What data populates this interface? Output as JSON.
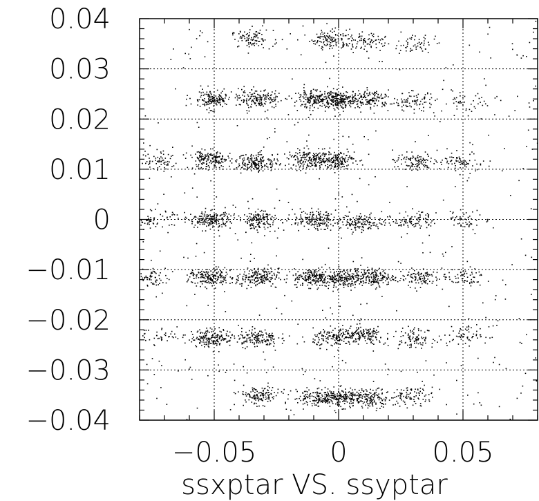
{
  "chart_data": {
    "type": "scatter",
    "title": "ssxptar VS. ssyptar",
    "xlabel": "ssxptar VS. ssyptar",
    "ylabel": "",
    "xlim": [
      -0.08,
      0.08
    ],
    "ylim": [
      -0.04,
      0.04
    ],
    "x_tick_labels": [
      "−0.05",
      "0",
      "0.05"
    ],
    "x_tick_values": [
      -0.05,
      0,
      0.05
    ],
    "y_tick_labels": [
      "0.04",
      "0.03",
      "0.02",
      "0.01",
      "0",
      "−0.01",
      "−0.02",
      "−0.03",
      "−0.04"
    ],
    "y_tick_values": [
      0.04,
      0.03,
      0.02,
      0.01,
      0,
      -0.01,
      -0.02,
      -0.03,
      -0.04
    ],
    "grid": true,
    "grid_style": "dotted",
    "marker_color": "#000000",
    "clusters": [
      {
        "x": -0.035,
        "y": 0.036,
        "n": 90
      },
      {
        "x": -0.003,
        "y": 0.036,
        "n": 110
      },
      {
        "x": 0.01,
        "y": 0.0355,
        "n": 80
      },
      {
        "x": 0.03,
        "y": 0.035,
        "n": 55
      },
      {
        "x": -0.051,
        "y": 0.024,
        "n": 150
      },
      {
        "x": -0.032,
        "y": 0.024,
        "n": 160
      },
      {
        "x": -0.01,
        "y": 0.024,
        "n": 160
      },
      {
        "x": 0.0,
        "y": 0.024,
        "n": 200
      },
      {
        "x": 0.012,
        "y": 0.024,
        "n": 140
      },
      {
        "x": 0.03,
        "y": 0.0235,
        "n": 80
      },
      {
        "x": 0.05,
        "y": 0.0235,
        "n": 40
      },
      {
        "x": -0.072,
        "y": 0.0115,
        "n": 60
      },
      {
        "x": -0.052,
        "y": 0.012,
        "n": 170
      },
      {
        "x": -0.033,
        "y": 0.0115,
        "n": 170
      },
      {
        "x": -0.012,
        "y": 0.012,
        "n": 160
      },
      {
        "x": -0.002,
        "y": 0.012,
        "n": 170
      },
      {
        "x": 0.03,
        "y": 0.0115,
        "n": 100
      },
      {
        "x": 0.05,
        "y": 0.0115,
        "n": 70
      },
      {
        "x": -0.075,
        "y": 0.0,
        "n": 60
      },
      {
        "x": -0.052,
        "y": 0.0,
        "n": 180
      },
      {
        "x": -0.032,
        "y": 0.0,
        "n": 150
      },
      {
        "x": -0.01,
        "y": 0.0,
        "n": 150
      },
      {
        "x": 0.009,
        "y": -0.0005,
        "n": 130
      },
      {
        "x": 0.03,
        "y": 0.0,
        "n": 90
      },
      {
        "x": 0.052,
        "y": 0.0,
        "n": 50
      },
      {
        "x": -0.075,
        "y": -0.0115,
        "n": 60
      },
      {
        "x": -0.052,
        "y": -0.0115,
        "n": 170
      },
      {
        "x": -0.033,
        "y": -0.0115,
        "n": 180
      },
      {
        "x": -0.01,
        "y": -0.0115,
        "n": 190
      },
      {
        "x": 0.002,
        "y": -0.0115,
        "n": 190
      },
      {
        "x": 0.014,
        "y": -0.0115,
        "n": 150
      },
      {
        "x": 0.032,
        "y": -0.0115,
        "n": 100
      },
      {
        "x": 0.05,
        "y": -0.0115,
        "n": 60
      },
      {
        "x": -0.072,
        "y": -0.023,
        "n": 40
      },
      {
        "x": -0.051,
        "y": -0.0235,
        "n": 170
      },
      {
        "x": -0.033,
        "y": -0.0235,
        "n": 140
      },
      {
        "x": -0.002,
        "y": -0.0235,
        "n": 140
      },
      {
        "x": 0.01,
        "y": -0.023,
        "n": 140
      },
      {
        "x": 0.03,
        "y": -0.0235,
        "n": 90
      },
      {
        "x": 0.052,
        "y": -0.023,
        "n": 60
      },
      {
        "x": -0.032,
        "y": -0.035,
        "n": 130
      },
      {
        "x": -0.01,
        "y": -0.0355,
        "n": 110
      },
      {
        "x": 0.0,
        "y": -0.0355,
        "n": 200
      },
      {
        "x": 0.013,
        "y": -0.0355,
        "n": 150
      },
      {
        "x": 0.03,
        "y": -0.035,
        "n": 80
      }
    ],
    "background_points": 450
  }
}
